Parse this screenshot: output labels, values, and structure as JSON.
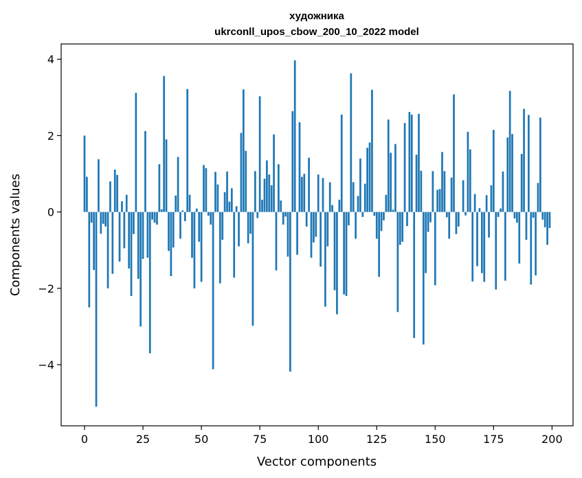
{
  "chart_data": {
    "type": "bar",
    "title_line1": "художника",
    "title_line2": "ukrconll_upos_cbow_200_10_2022 model",
    "xlabel": "Vector components",
    "ylabel": "Components values",
    "xlim": [
      -10,
      209
    ],
    "ylim": [
      -5.6,
      4.4
    ],
    "xticks": [
      0,
      25,
      50,
      75,
      100,
      125,
      150,
      175,
      200
    ],
    "yticks": [
      -4,
      -2,
      0,
      2,
      4
    ],
    "grid": false,
    "bar_color": "#1f77b4",
    "values": [
      2.0,
      0.92,
      -2.5,
      -0.28,
      -1.52,
      -5.1,
      1.38,
      -0.57,
      -0.31,
      -0.38,
      -2.0,
      0.8,
      -1.62,
      1.11,
      0.97,
      -1.3,
      0.28,
      -0.95,
      0.45,
      -1.48,
      -2.2,
      -0.58,
      3.12,
      -1.75,
      -3.0,
      -1.23,
      2.12,
      -1.2,
      -3.7,
      -0.2,
      -0.28,
      -0.33,
      1.25,
      0.07,
      3.56,
      1.9,
      -1.02,
      -1.68,
      -0.93,
      0.43,
      1.44,
      -0.7,
      0.04,
      -0.24,
      3.22,
      0.45,
      -1.2,
      -2.0,
      0.09,
      -0.78,
      -1.83,
      1.23,
      1.15,
      -0.1,
      -0.33,
      -4.12,
      1.05,
      0.72,
      -1.87,
      -0.73,
      0.52,
      1.06,
      0.27,
      0.62,
      -1.72,
      0.15,
      -0.9,
      2.07,
      3.21,
      1.6,
      -0.82,
      -0.57,
      -2.98,
      1.07,
      -0.16,
      3.03,
      0.32,
      0.87,
      1.35,
      0.98,
      0.7,
      2.03,
      -1.53,
      1.25,
      0.3,
      -0.33,
      -0.12,
      -1.17,
      -4.18,
      2.64,
      3.97,
      -1.12,
      2.35,
      0.92,
      1.0,
      -0.38,
      1.42,
      -1.2,
      -0.8,
      -0.65,
      0.98,
      -1.43,
      0.89,
      -2.48,
      -0.9,
      0.78,
      0.18,
      -2.05,
      -2.68,
      0.32,
      2.55,
      -2.16,
      -2.2,
      -0.35,
      3.63,
      0.78,
      -0.7,
      0.42,
      1.4,
      -0.13,
      0.74,
      1.68,
      1.82,
      3.2,
      -0.1,
      -0.7,
      -1.7,
      -0.5,
      -0.22,
      0.45,
      2.42,
      1.55,
      0.06,
      1.78,
      -2.62,
      -0.86,
      -0.78,
      2.33,
      -0.37,
      2.62,
      2.55,
      -3.3,
      1.5,
      2.57,
      1.08,
      -3.47,
      -1.6,
      -0.52,
      -0.27,
      1.07,
      -1.92,
      0.58,
      0.6,
      1.57,
      1.07,
      -0.14,
      -0.7,
      0.9,
      3.08,
      -0.58,
      -0.38,
      0.0,
      0.83,
      -0.09,
      2.1,
      1.64,
      -1.82,
      0.47,
      -1.42,
      0.1,
      -1.6,
      -1.83,
      0.44,
      -0.67,
      0.7,
      2.15,
      -2.03,
      -0.13,
      0.09,
      1.06,
      -1.8,
      1.95,
      3.17,
      2.04,
      -0.17,
      -0.28,
      -1.35,
      1.52,
      2.7,
      -0.73,
      2.54,
      -1.9,
      -0.15,
      -1.66,
      0.76,
      2.47,
      -0.2,
      -0.4,
      -0.86,
      -0.42
    ]
  }
}
